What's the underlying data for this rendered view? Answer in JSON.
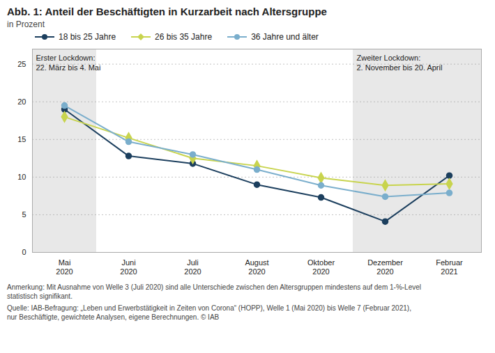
{
  "chart_data": {
    "type": "line",
    "title": "Abb. 1: Anteil der Beschäftigten in Kurzarbeit nach Altersgruppe",
    "ylabel": "in Prozent",
    "categories": [
      "Mai\n2020",
      "Juni\n2020",
      "Juli\n2020",
      "August\n2020",
      "Oktober\n2020",
      "Dezember\n2020",
      "Februar\n2021"
    ],
    "series": [
      {
        "name": "18 bis 25 Jahre",
        "color": "#1c3f5e",
        "marker": "circle",
        "values": [
          19.0,
          12.8,
          11.8,
          9.0,
          7.3,
          4.1,
          10.2
        ]
      },
      {
        "name": "26 bis 35 Jahre",
        "color": "#c8d44e",
        "marker": "diamond",
        "values": [
          18.0,
          15.2,
          12.5,
          11.5,
          9.9,
          8.9,
          9.1
        ]
      },
      {
        "name": "36 Jahre und älter",
        "color": "#7aaecc",
        "marker": "circle",
        "values": [
          19.5,
          14.7,
          13.0,
          11.0,
          8.9,
          7.4,
          7.9
        ]
      }
    ],
    "ylim": [
      0,
      27
    ],
    "yticks": [
      0,
      5,
      10,
      15,
      20,
      25
    ],
    "grid": true,
    "legend": "top",
    "annotations": [
      {
        "text": "Erster Lockdown:\n22. März bis 4. Mai",
        "categories": [
          "Mai\n2020"
        ],
        "color": "#e8e8e8"
      },
      {
        "text": "Zweiter Lockdown:\n2. November bis 20. April",
        "categories": [
          "Dezember\n2020",
          "Februar\n2021"
        ],
        "color": "#e8e8e8"
      }
    ],
    "notes": [
      "Anmerkung: Mit Ausnahme von Welle 3 (Juli 2020) sind alle Unterschiede zwischen den Altersgruppen mindestens auf dem 1-%-Level\nstatistisch signifikant.",
      "Quelle: IAB-Befragung: „Leben und Erwerbstätigkeit in Zeiten von Corona“ (HOPP), Welle 1 (Mai 2020) bis Welle 7 (Februar 2021),\nnur Beschäftigte, gewichtete Analysen, eigene Berechnungen. © IAB"
    ]
  }
}
